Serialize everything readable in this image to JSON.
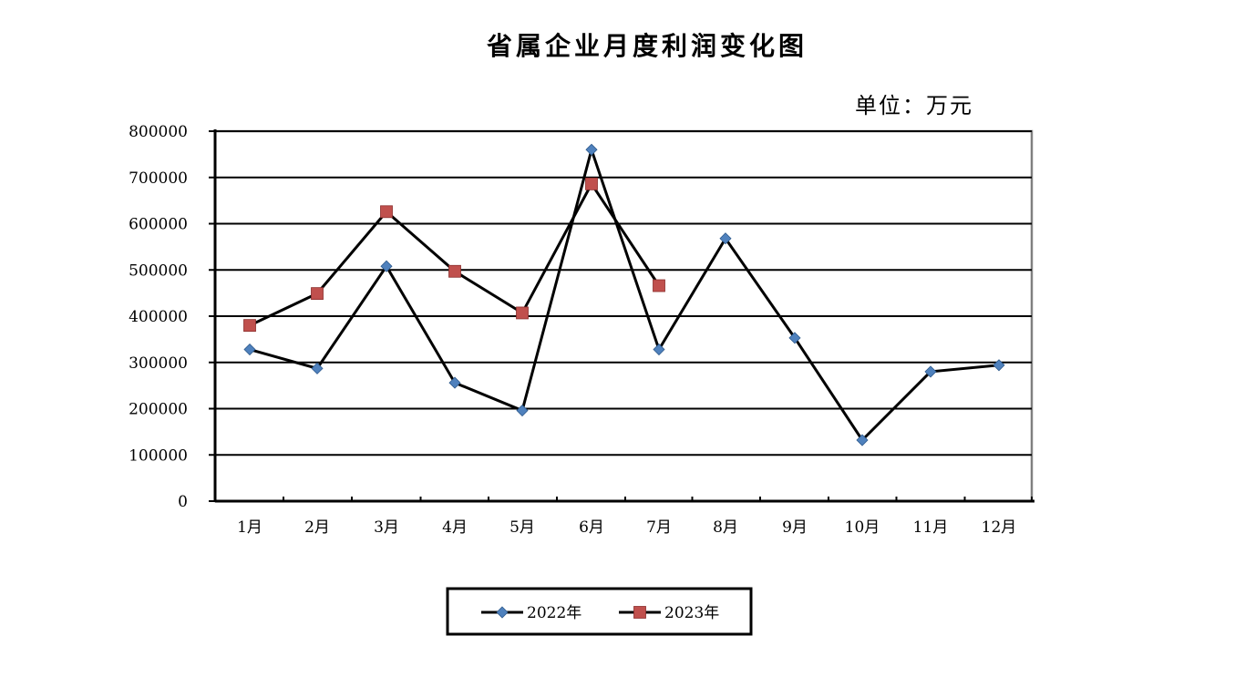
{
  "chart_data": {
    "type": "line",
    "title": "省属企业月度利润变化图",
    "unit_label": "单位：万元",
    "categories": [
      "1月",
      "2月",
      "3月",
      "4月",
      "5月",
      "6月",
      "7月",
      "8月",
      "9月",
      "10月",
      "11月",
      "12月"
    ],
    "ylim": [
      0,
      800000
    ],
    "yticks": [
      0,
      100000,
      200000,
      300000,
      400000,
      500000,
      600000,
      700000,
      800000
    ],
    "grid": true,
    "legend_position": "bottom-center",
    "series": [
      {
        "name": "2022年",
        "marker": "diamond",
        "marker_color": "#4F81BD",
        "line_color": "#000000",
        "values": [
          328000,
          287000,
          508000,
          256000,
          196000,
          760000,
          328000,
          568000,
          353000,
          132000,
          280000,
          294000
        ]
      },
      {
        "name": "2023年",
        "marker": "square",
        "marker_color": "#C0504D",
        "line_color": "#000000",
        "values": [
          380000,
          449000,
          626000,
          497000,
          407000,
          686000,
          466000,
          null,
          null,
          null,
          null,
          null
        ]
      }
    ]
  }
}
